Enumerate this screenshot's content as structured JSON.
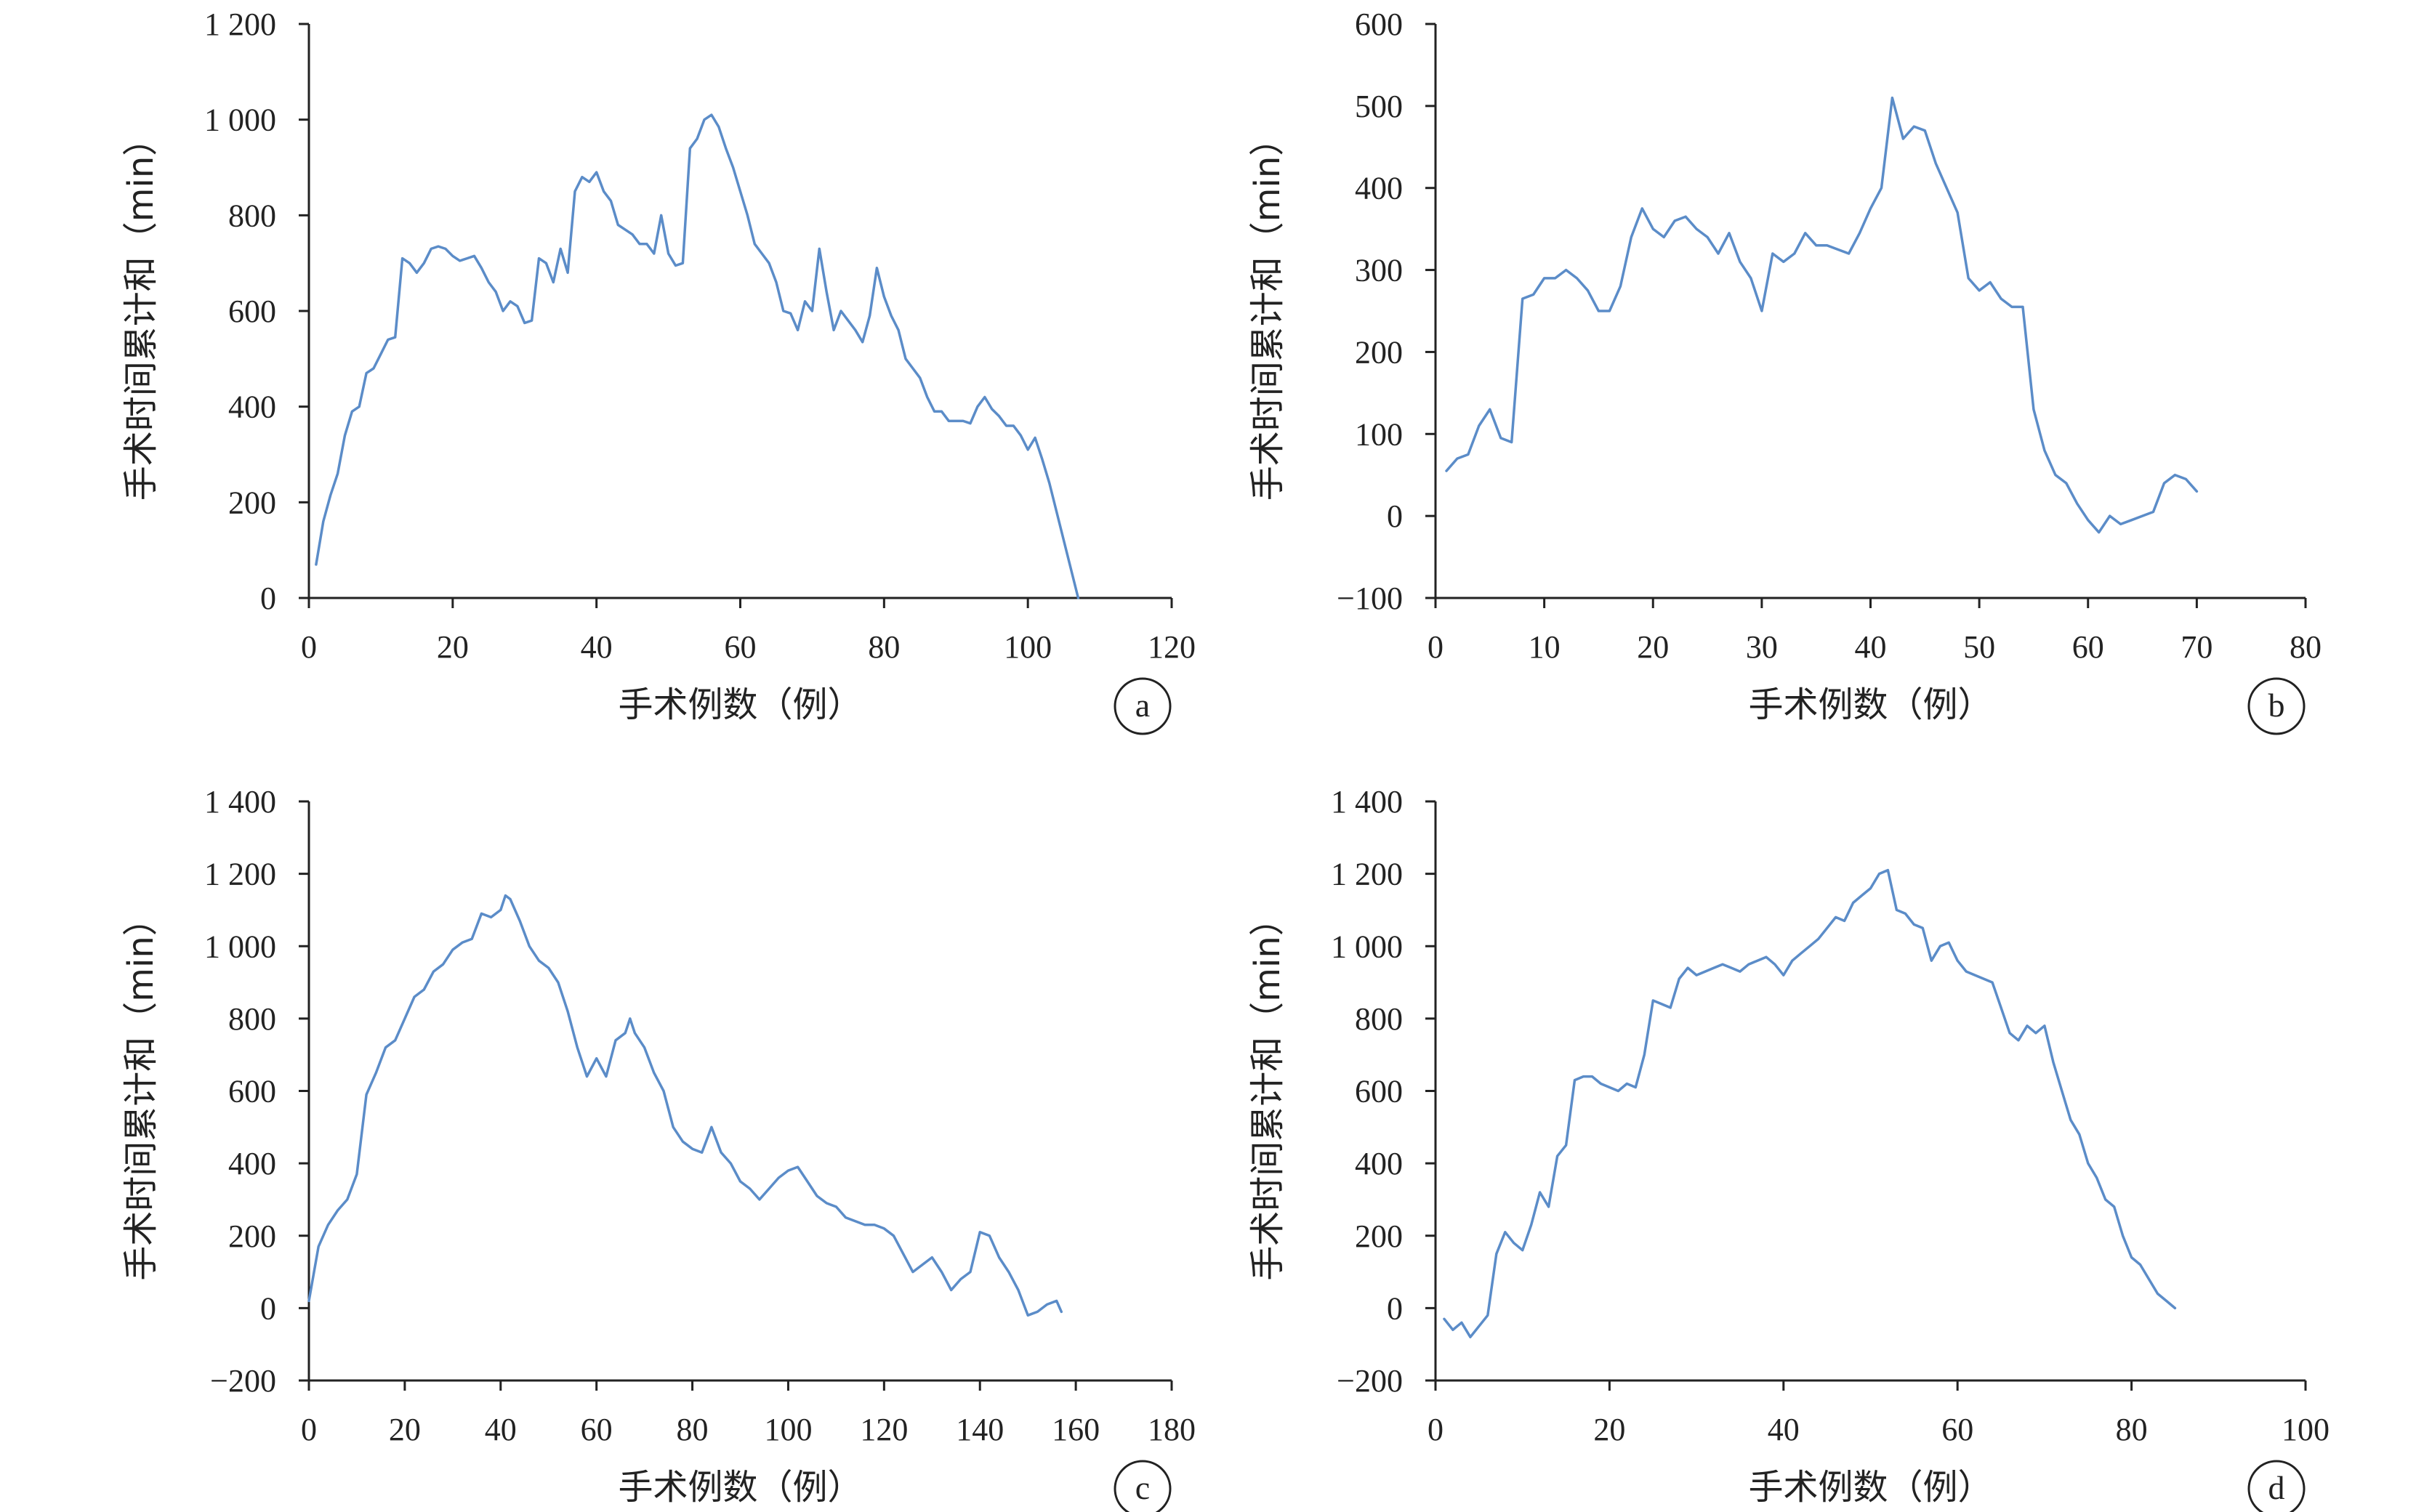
{
  "line_color": "#5b8cc8",
  "chart_data": [
    {
      "type": "line",
      "panel": "a",
      "xlabel": "手术例数（例）",
      "ylabel": "手术时间累计和（min）",
      "xlim": [
        0,
        120
      ],
      "ylim": [
        0,
        1200
      ],
      "xticks": [
        0,
        20,
        40,
        60,
        80,
        100,
        120
      ],
      "yticks": [
        0,
        200,
        400,
        600,
        800,
        1000,
        1200
      ],
      "xtick_labels": [
        "0",
        "20",
        "40",
        "60",
        "80",
        "100",
        "120"
      ],
      "ytick_labels": [
        "0",
        "200",
        "400",
        "600",
        "800",
        "1 000",
        "1 200"
      ],
      "series": [
        {
          "x": [
            1,
            2,
            3,
            4,
            5,
            6,
            7,
            8,
            9,
            10,
            11,
            12,
            13,
            14,
            15,
            16,
            17,
            18,
            19,
            20,
            21,
            22,
            23,
            24,
            25,
            26,
            27,
            28,
            29,
            30,
            31,
            32,
            33,
            34,
            35,
            36,
            37,
            38,
            39,
            40,
            41,
            42,
            43,
            44,
            45,
            46,
            47,
            48,
            49,
            50,
            51,
            52,
            53,
            54,
            55,
            56,
            57,
            58,
            59,
            60,
            61,
            62,
            63,
            64,
            65,
            66,
            67,
            68,
            69,
            70,
            71,
            72,
            73,
            74,
            75,
            76,
            77,
            78,
            79,
            80,
            81,
            82,
            83,
            84,
            85,
            86,
            87,
            88,
            89,
            90,
            91,
            92,
            93,
            94,
            95,
            96,
            97,
            98,
            99,
            100,
            101,
            102,
            103,
            104,
            105,
            106,
            107
          ],
          "y": [
            70,
            160,
            215,
            260,
            340,
            390,
            400,
            470,
            480,
            510,
            540,
            545,
            710,
            700,
            680,
            700,
            730,
            735,
            730,
            715,
            705,
            710,
            715,
            690,
            660,
            640,
            600,
            620,
            610,
            575,
            580,
            710,
            700,
            660,
            730,
            680,
            850,
            880,
            870,
            890,
            850,
            830,
            780,
            770,
            760,
            740,
            740,
            720,
            800,
            720,
            695,
            700,
            940,
            960,
            1000,
            1010,
            985,
            940,
            900,
            850,
            800,
            740,
            720,
            700,
            660,
            600,
            595,
            560,
            620,
            600,
            730,
            640,
            560,
            600,
            580,
            560,
            535,
            590,
            690,
            630,
            590,
            560,
            500,
            480,
            460,
            420,
            390,
            390,
            370,
            370,
            370,
            365,
            400,
            420,
            395,
            380,
            360,
            360,
            340,
            310,
            335,
            290,
            240,
            180,
            120,
            60,
            0
          ]
        }
      ]
    },
    {
      "type": "line",
      "panel": "b",
      "xlabel": "手术例数（例）",
      "ylabel": "手术时间累计和（min）",
      "xlim": [
        0,
        80
      ],
      "ylim": [
        -100,
        600
      ],
      "xticks": [
        0,
        10,
        20,
        30,
        40,
        50,
        60,
        70,
        80
      ],
      "yticks": [
        -100,
        0,
        100,
        200,
        300,
        400,
        500,
        600
      ],
      "xtick_labels": [
        "0",
        "10",
        "20",
        "30",
        "40",
        "50",
        "60",
        "70",
        "80"
      ],
      "ytick_labels": [
        "−100",
        "0",
        "100",
        "200",
        "300",
        "400",
        "500",
        "600"
      ],
      "series": [
        {
          "x": [
            1,
            2,
            3,
            4,
            5,
            6,
            7,
            8,
            9,
            10,
            11,
            12,
            13,
            14,
            15,
            16,
            17,
            18,
            19,
            20,
            21,
            22,
            23,
            24,
            25,
            26,
            27,
            28,
            29,
            30,
            31,
            32,
            33,
            34,
            35,
            36,
            37,
            38,
            39,
            40,
            41,
            42,
            43,
            44,
            45,
            46,
            47,
            48,
            49,
            50,
            51,
            52,
            53,
            54,
            55,
            56,
            57,
            58,
            59,
            60,
            61,
            62,
            63,
            64,
            65,
            66,
            67,
            68,
            69,
            70
          ],
          "y": [
            55,
            70,
            75,
            110,
            130,
            95,
            90,
            265,
            270,
            290,
            290,
            300,
            290,
            275,
            250,
            250,
            280,
            340,
            375,
            350,
            340,
            360,
            365,
            350,
            340,
            320,
            345,
            310,
            290,
            250,
            320,
            310,
            320,
            345,
            330,
            330,
            325,
            320,
            345,
            375,
            400,
            510,
            460,
            475,
            470,
            430,
            400,
            370,
            290,
            275,
            285,
            265,
            255,
            255,
            130,
            80,
            50,
            40,
            15,
            -5,
            -20,
            0,
            -10,
            -5,
            0,
            5,
            40,
            50,
            45,
            30
          ]
        }
      ]
    },
    {
      "type": "line",
      "panel": "c",
      "xlabel": "手术例数（例）",
      "ylabel": "手术时间累计和（min）",
      "xlim": [
        0,
        180
      ],
      "ylim": [
        -200,
        1400
      ],
      "xticks": [
        0,
        20,
        40,
        60,
        80,
        100,
        120,
        140,
        160,
        180
      ],
      "yticks": [
        -200,
        0,
        200,
        400,
        600,
        800,
        1000,
        1200,
        1400
      ],
      "xtick_labels": [
        "0",
        "20",
        "40",
        "60",
        "80",
        "100",
        "120",
        "140",
        "160",
        "180"
      ],
      "ytick_labels": [
        "−200",
        "0",
        "200",
        "400",
        "600",
        "800",
        "1 000",
        "1 200",
        "1 400"
      ],
      "series": [
        {
          "x": [
            0,
            2,
            4,
            6,
            8,
            10,
            12,
            14,
            16,
            18,
            20,
            22,
            24,
            26,
            28,
            30,
            32,
            34,
            36,
            38,
            40,
            41,
            42,
            44,
            46,
            48,
            50,
            52,
            54,
            56,
            58,
            60,
            62,
            64,
            66,
            67,
            68,
            70,
            72,
            74,
            76,
            78,
            80,
            82,
            84,
            86,
            88,
            90,
            92,
            94,
            96,
            98,
            100,
            102,
            104,
            106,
            108,
            110,
            112,
            114,
            116,
            118,
            120,
            122,
            124,
            126,
            128,
            130,
            132,
            134,
            136,
            138,
            140,
            142,
            144,
            146,
            148,
            150,
            152,
            154,
            156,
            157
          ],
          "y": [
            20,
            170,
            230,
            270,
            300,
            370,
            590,
            650,
            720,
            740,
            800,
            860,
            880,
            930,
            950,
            990,
            1010,
            1020,
            1090,
            1080,
            1100,
            1140,
            1130,
            1070,
            1000,
            960,
            940,
            900,
            820,
            720,
            640,
            690,
            640,
            740,
            760,
            800,
            760,
            720,
            650,
            600,
            500,
            460,
            440,
            430,
            500,
            430,
            400,
            350,
            330,
            300,
            330,
            360,
            380,
            390,
            350,
            310,
            290,
            280,
            250,
            240,
            230,
            230,
            220,
            200,
            150,
            100,
            120,
            140,
            100,
            50,
            80,
            100,
            210,
            200,
            140,
            100,
            50,
            -20,
            -10,
            10,
            20,
            -10
          ]
        }
      ]
    },
    {
      "type": "line",
      "panel": "d",
      "xlabel": "手术例数（例）",
      "ylabel": "手术时间累计和（min）",
      "xlim": [
        0,
        100
      ],
      "ylim": [
        -200,
        1400
      ],
      "xticks": [
        0,
        20,
        40,
        60,
        80,
        100
      ],
      "yticks": [
        -200,
        0,
        200,
        400,
        600,
        800,
        1000,
        1200,
        1400
      ],
      "xtick_labels": [
        "0",
        "20",
        "40",
        "60",
        "80",
        "100"
      ],
      "ytick_labels": [
        "−200",
        "0",
        "200",
        "400",
        "600",
        "800",
        "1 000",
        "1 200",
        "1 400"
      ],
      "series": [
        {
          "x": [
            1,
            2,
            3,
            4,
            5,
            6,
            7,
            8,
            9,
            10,
            11,
            12,
            13,
            14,
            15,
            16,
            17,
            18,
            19,
            20,
            21,
            22,
            23,
            24,
            25,
            26,
            27,
            28,
            29,
            30,
            31,
            32,
            33,
            34,
            35,
            36,
            37,
            38,
            39,
            40,
            41,
            42,
            43,
            44,
            45,
            46,
            47,
            48,
            49,
            50,
            51,
            52,
            53,
            54,
            55,
            56,
            57,
            58,
            59,
            60,
            61,
            62,
            63,
            64,
            65,
            66,
            67,
            68,
            69,
            70,
            71,
            72,
            73,
            74,
            75,
            76,
            77,
            78,
            79,
            80,
            81,
            82,
            83,
            84,
            85
          ],
          "y": [
            -30,
            -60,
            -40,
            -80,
            -50,
            -20,
            150,
            210,
            180,
            160,
            230,
            320,
            280,
            420,
            450,
            630,
            640,
            640,
            620,
            610,
            600,
            620,
            610,
            700,
            850,
            840,
            830,
            910,
            940,
            920,
            930,
            940,
            950,
            940,
            930,
            950,
            960,
            970,
            950,
            920,
            960,
            980,
            1000,
            1020,
            1050,
            1080,
            1070,
            1120,
            1140,
            1160,
            1200,
            1210,
            1100,
            1090,
            1060,
            1050,
            960,
            1000,
            1010,
            960,
            930,
            920,
            910,
            900,
            830,
            760,
            740,
            780,
            760,
            780,
            680,
            600,
            520,
            480,
            400,
            360,
            300,
            280,
            200,
            140,
            120,
            80,
            40,
            20,
            0
          ]
        }
      ]
    }
  ]
}
